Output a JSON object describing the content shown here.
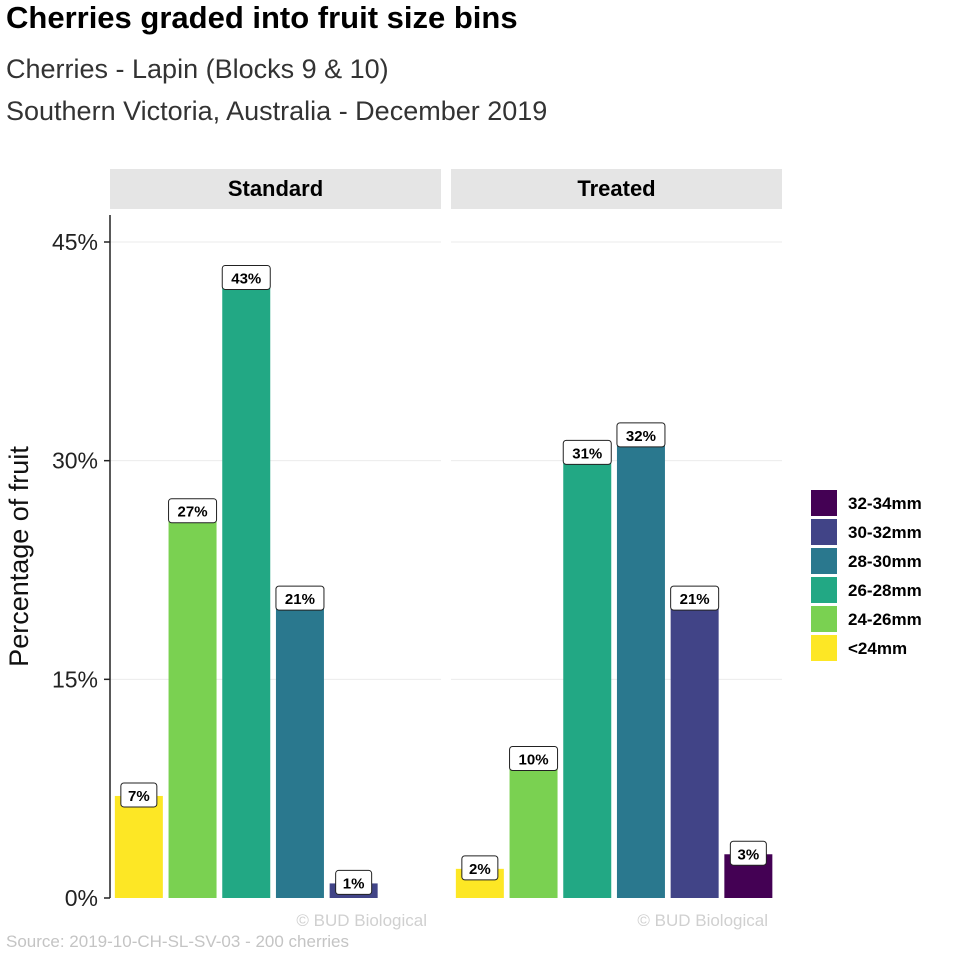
{
  "title": "Cherries graded into fruit size bins",
  "subtitle_1": "Cherries - Lapin (Blocks 9 & 10)",
  "subtitle_2": "Southern Victoria, Australia - December 2019",
  "caption": "Source: 2019-10-CH-SL-SV-03 - 200 cherries",
  "watermark": "© BUD Biological",
  "colors": {
    "<24mm": "#fde725",
    "24-26mm": "#7ad151",
    "26-28mm": "#22a884",
    "28-30mm": "#2a788e",
    "30-32mm": "#414487",
    "32-34mm": "#440154",
    "strip": "#e5e5e5",
    "grid": "#ebebeb"
  },
  "chart_data": {
    "type": "bar",
    "ylabel": "Percentage of fruit",
    "ylim": [
      0,
      46.5
    ],
    "yticks": [
      0,
      15,
      30,
      45
    ],
    "ytick_labels": [
      "0%",
      "15%",
      "30%",
      "45%"
    ],
    "categories": [
      "<24mm",
      "24-26mm",
      "26-28mm",
      "28-30mm",
      "30-32mm",
      "32-34mm"
    ],
    "legend": {
      "position": "right",
      "entries": [
        "32-34mm",
        "30-32mm",
        "28-30mm",
        "26-28mm",
        "24-26mm",
        "<24mm"
      ]
    },
    "panels": [
      {
        "name": "Standard",
        "values": [
          7.0,
          26.5,
          42.5,
          20.5,
          1.0,
          0
        ],
        "labels": [
          "7%",
          "27%",
          "43%",
          "21%",
          "1%",
          ""
        ]
      },
      {
        "name": "Treated",
        "values": [
          2.0,
          9.5,
          30.5,
          31.7,
          20.5,
          3.0
        ],
        "labels": [
          "2%",
          "10%",
          "31%",
          "32%",
          "21%",
          "3%"
        ]
      }
    ]
  }
}
